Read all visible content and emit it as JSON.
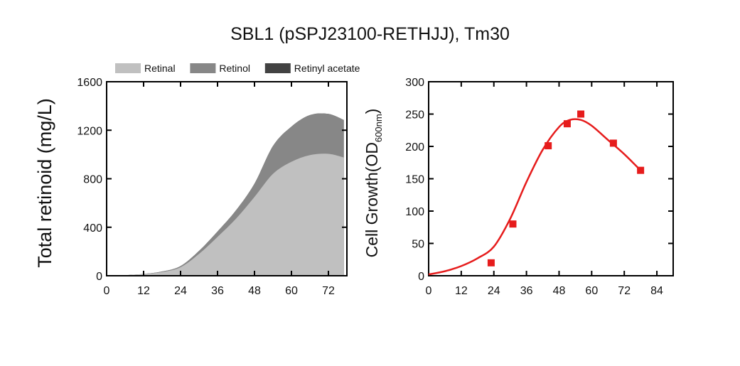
{
  "page_title": "SBL1 (pSPJ23100-RETHJJ), Tm30",
  "chart_data": [
    {
      "type": "area",
      "stacked": true,
      "title": "",
      "xlabel": "",
      "ylabel": "Total retinoid (mg/L)",
      "xlim": [
        0,
        78
      ],
      "ylim": [
        0,
        1600
      ],
      "xticks": [
        "0",
        "12",
        "24",
        "36",
        "48",
        "60",
        "72"
      ],
      "yticks": [
        "0",
        "400",
        "800",
        "1200",
        "1600"
      ],
      "legend_position": "top",
      "x": [
        6,
        12,
        18,
        24,
        30,
        36,
        42,
        48,
        54,
        60,
        66,
        72,
        77
      ],
      "series": [
        {
          "name": "Retinal",
          "color": "#c0c0c0",
          "values": [
            5,
            15,
            30,
            70,
            180,
            320,
            470,
            650,
            840,
            940,
            995,
            1005,
            975
          ]
        },
        {
          "name": "Retinol",
          "color": "#878787",
          "values": [
            0,
            0,
            5,
            10,
            25,
            45,
            70,
            110,
            230,
            290,
            330,
            330,
            310
          ]
        },
        {
          "name": "Retinyl acetate",
          "color": "#424242",
          "values": [
            0,
            0,
            0,
            0,
            0,
            0,
            0,
            0,
            0,
            0,
            0,
            0,
            0
          ]
        }
      ]
    },
    {
      "type": "scatter",
      "title": "",
      "xlabel": "",
      "ylabel": "Cell Growth(OD",
      "ylabel_sub": "600nm",
      "ylabel_close": ")",
      "xlim": [
        0,
        90
      ],
      "ylim": [
        0,
        300
      ],
      "xticks": [
        "0",
        "12",
        "24",
        "36",
        "48",
        "60",
        "72",
        "84"
      ],
      "yticks": [
        "0",
        "50",
        "100",
        "150",
        "200",
        "250",
        "300"
      ],
      "color": "#e61c1c",
      "series": [
        {
          "name": "",
          "x": [
            23,
            31,
            44,
            51,
            56,
            68,
            78
          ],
          "y": [
            20,
            80,
            201,
            235,
            250,
            205,
            163
          ]
        }
      ],
      "fit_curve": {
        "x": [
          0,
          6,
          12,
          18,
          24,
          30,
          36,
          42,
          48,
          52,
          56,
          60,
          66,
          72,
          78
        ],
        "y": [
          2,
          7,
          15,
          27,
          45,
          88,
          145,
          195,
          230,
          241,
          241,
          232,
          210,
          188,
          163
        ]
      }
    }
  ]
}
